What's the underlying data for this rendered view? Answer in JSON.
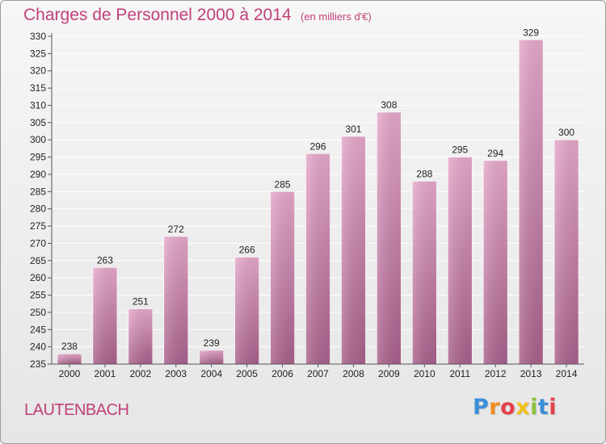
{
  "header": {
    "title": "Charges de Personnel 2000 à 2014",
    "subtitle": "(en milliers d'€)"
  },
  "footer": {
    "commune": "LAUTENBACH",
    "logo_text": "Proxiti",
    "logo_colors": [
      "#3c8fd8",
      "#f28c1e",
      "#e5404c",
      "#f2c11a",
      "#8cc43c",
      "#3c8fd8",
      "#e5404c"
    ]
  },
  "colors": {
    "bar_dark": "#a8608b",
    "bar_light": "#e6a8cb",
    "accent": "#c1407a",
    "grid": "#ffffff",
    "axis_text": "#222222"
  },
  "chart_data": {
    "type": "bar",
    "categories": [
      "2000",
      "2001",
      "2002",
      "2003",
      "2004",
      "2005",
      "2006",
      "2007",
      "2008",
      "2009",
      "2010",
      "2011",
      "2012",
      "2013",
      "2014"
    ],
    "values": [
      238,
      263,
      251,
      272,
      239,
      266,
      285,
      296,
      301,
      308,
      288,
      295,
      294,
      329,
      300
    ],
    "title": "Charges de Personnel 2000 à 2014",
    "subtitle": "(en milliers d'€)",
    "ylim": [
      235,
      330
    ],
    "yticks": [
      235,
      240,
      245,
      250,
      255,
      260,
      265,
      270,
      275,
      280,
      285,
      290,
      295,
      300,
      305,
      310,
      315,
      320,
      325,
      330
    ],
    "grid": true,
    "legend": "none"
  }
}
